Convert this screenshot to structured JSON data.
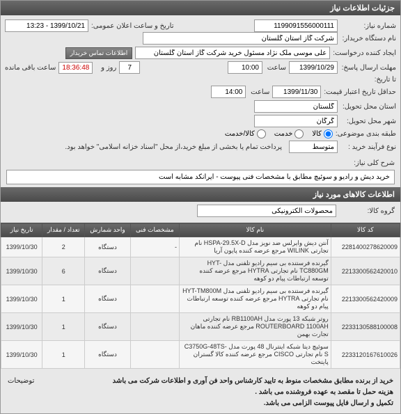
{
  "panel1": {
    "title": "جزئیات اطلاعات نیاز"
  },
  "form": {
    "need_no_label": "شماره نیاز:",
    "need_no": "1199091556000111",
    "pub_date_label": "تاریخ و ساعت اعلان عمومی:",
    "pub_date": "1399/10/21 - 13:23",
    "buyer_org_label": "نام دستگاه خریدار:",
    "buyer_org": "شرکت گاز استان گلستان",
    "creator_label": "ایجاد کننده درخواست:",
    "creator": "علی موسی ملک نژاد مسئول خرید شرکت گاز استان گلستان",
    "contact_btn": "اطلاعات تماس خریدار",
    "deadline_label": "مهلت ارسال پاسخ:",
    "deadline_date": "1399/10/29",
    "time_label": "ساعت",
    "deadline_time": "10:00",
    "days_label": "روز و",
    "days": "7",
    "countdown": "18:36:48",
    "remain_label": "ساعت باقی مانده",
    "price_until_label": "تا تاریخ:",
    "credit_deadline_label": "حداقل تاریخ اعتبار قیمت:",
    "credit_date": "1399/11/30",
    "credit_time": "14:00",
    "delivery_province_label": "استان محل تحویل:",
    "delivery_province": "گلستان",
    "delivery_city_label": "شهر محل تحویل:",
    "delivery_city": "گرگان",
    "budget_label": "طبقه بندی موضوعی:",
    "budget_goods": "کالا",
    "budget_service": "خدمت",
    "budget_both": "کالا/خدمت",
    "process_label": "نوع فرآیند خرید :",
    "process_value": "متوسط",
    "process_note": "پرداخت تمام یا بخشی از مبلغ خرید،از محل \"اسناد خزانه اسلامی\" خواهد بود."
  },
  "desc": {
    "label": "شرح کلی نیاز:",
    "text": "خرید دیش و رادیو و سوئیچ مطابق با مشخصات فنی پیوست - ایرانکد مشابه است"
  },
  "panel2": {
    "title": "اطلاعات کالاهای مورد نیاز"
  },
  "group": {
    "label": "گروه کالا:",
    "value": "محصولات الکترونیکی"
  },
  "table": {
    "headers": {
      "code": "کد کالا",
      "name": "نام کالا",
      "spec": "مشخصات فنی",
      "unit": "واحد شمارش",
      "qty": "تعداد / مقدار",
      "date": "تاریخ نیاز"
    },
    "rows": [
      {
        "code": "2281400278620009",
        "name": "آنتن دیش وایرلس ضد نویز مدل HSPA-29.5X-D نام تجارتی WILINK مرجع عرضه کننده پایون آریا",
        "spec": "-",
        "unit": "دستگاه",
        "qty": "2",
        "date": "1399/10/30"
      },
      {
        "code": "2213300562420010",
        "name": "گیرنده فرستنده بی سیم رادیو تلفنی مدل HYT-TC880GM نام تجارتی HYTRA مرجع عرضه کننده توسعه ارتباطات پیام دو کوهه",
        "spec": "",
        "unit": "دستگاه",
        "qty": "6",
        "date": "1399/10/30"
      },
      {
        "code": "2213300562420009",
        "name": "گیرنده فرستنده بی سیم رادیو تلفنی مدل HYT-TM800M نام تجارتی HYTRA مرجع عرضه کننده توسعه ارتباطات پیام دو کوهه",
        "spec": "",
        "unit": "دستگاه",
        "qty": "1",
        "date": "1399/10/30"
      },
      {
        "code": "2233130588100008",
        "name": "روتر شبکه 13 پورت مدل RB1100AH نام تجارتی ROUTERBOARD 1100AH مرجع عرضه کننده ماهان تجارت بهمن",
        "spec": "",
        "unit": "دستگاه",
        "qty": "1",
        "date": "1399/10/30"
      },
      {
        "code": "2233120167610026",
        "name": "سوئیچ دیتا شبکه اینترنال 48 پورت مدل C3750G-48TS-S نام تجارتی CISCO مرجع عرضه کننده کالا گستران پایتخت",
        "spec": "",
        "unit": "دستگاه",
        "qty": "1",
        "date": "1399/10/30"
      }
    ]
  },
  "footer": {
    "line1": "خرید از برنده مطابق مشخصات منوط به تایید کارشناس واحد فن آوری و اطلاعات شرکت می باشد",
    "line2": "هزینه حمل تا مقصد به عهده فروشنده می باشد .",
    "line3": "تکمیل و ارسال فایل پیوست الزامی می باشد.",
    "notes_label": "توضیحات"
  }
}
